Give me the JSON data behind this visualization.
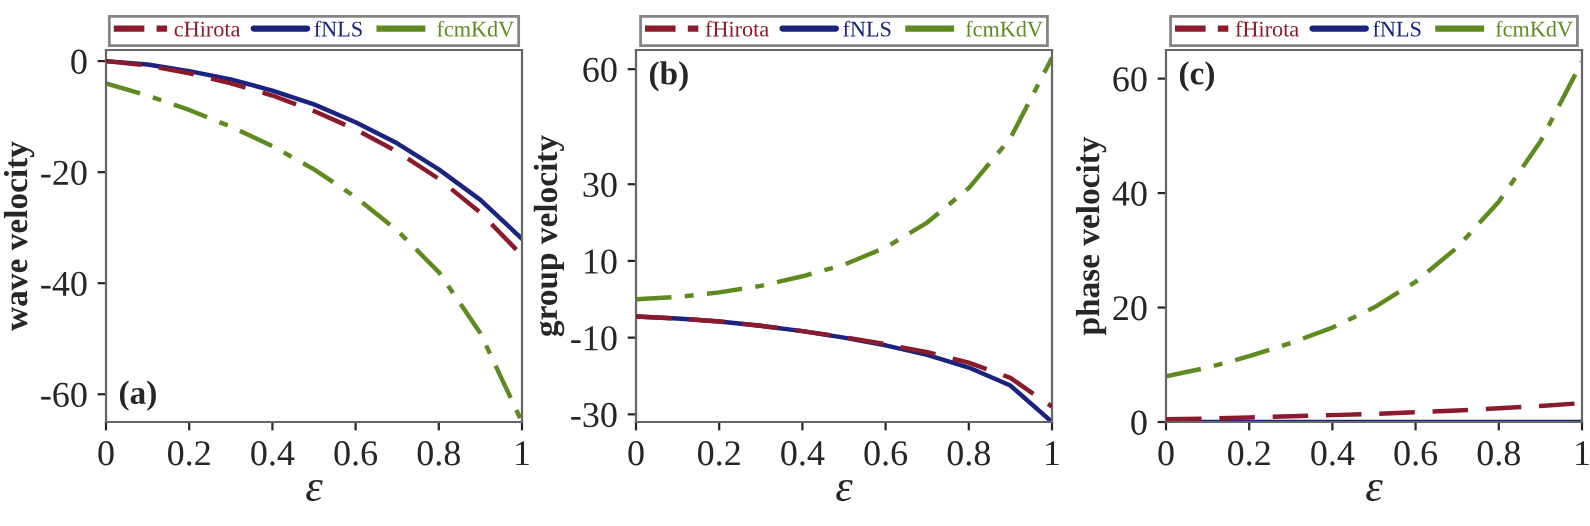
{
  "chart_data": [
    {
      "type": "line",
      "xlabel": "ε",
      "ylabel": "wave velocity",
      "annotations": [
        "(a)"
      ],
      "x": [
        0,
        0.1,
        0.2,
        0.3,
        0.4,
        0.5,
        0.6,
        0.7,
        0.8,
        0.9,
        1
      ],
      "xlim": [
        0,
        1
      ],
      "xticks": [
        0,
        0.2,
        0.4,
        0.6,
        0.8,
        1
      ],
      "ylim": [
        -65,
        2
      ],
      "yticks": [
        {
          "value": 0,
          "label": "0"
        },
        {
          "value": -20,
          "label": "-20"
        },
        {
          "value": -40,
          "label": "-40"
        },
        {
          "value": -60,
          "label": "-60"
        }
      ],
      "legend": "top",
      "grid": false,
      "series": [
        {
          "name": "cHirota",
          "color": "#8b1a2b",
          "line_style": "dashed",
          "values": [
            0,
            -0.8,
            -2.2,
            -4,
            -6.2,
            -9,
            -12.3,
            -16.3,
            -21.2,
            -27.3,
            -35
          ]
        },
        {
          "name": "fNLS",
          "color": "#1a237e",
          "line_style": "solid",
          "values": [
            0,
            -0.6,
            -1.8,
            -3.3,
            -5.3,
            -7.8,
            -11,
            -14.8,
            -19.5,
            -25,
            -32
          ]
        },
        {
          "name": "fcmKdV",
          "color": "#5f8a1f",
          "line_style": "dashdot",
          "values": [
            -4,
            -6.2,
            -8.8,
            -11.8,
            -15.3,
            -19.5,
            -24.5,
            -30.5,
            -38,
            -49,
            -65
          ]
        }
      ]
    },
    {
      "type": "line",
      "xlabel": "ε",
      "ylabel": "group velocity",
      "annotations": [
        "(b)"
      ],
      "x": [
        0,
        0.1,
        0.2,
        0.3,
        0.4,
        0.5,
        0.6,
        0.7,
        0.8,
        0.9,
        1
      ],
      "xlim": [
        0,
        1
      ],
      "xticks": [
        0,
        0.2,
        0.4,
        0.6,
        0.8,
        1
      ],
      "ylim": [
        -32,
        65
      ],
      "yticks": [
        60,
        30,
        10,
        {
          "value": -10,
          "label": "-10"
        },
        {
          "value": -30,
          "label": "-30"
        }
      ],
      "legend": "top",
      "grid": false,
      "series": [
        {
          "name": "fHirota",
          "color": "#8b1a2b",
          "line_style": "dashed",
          "values": [
            -4.5,
            -5,
            -5.8,
            -6.9,
            -8.3,
            -9.9,
            -11.7,
            -13.8,
            -16.5,
            -20.5,
            -28
          ]
        },
        {
          "name": "fNLS",
          "color": "#1a237e",
          "line_style": "solid",
          "values": [
            -4.5,
            -5,
            -5.8,
            -6.9,
            -8.3,
            -10,
            -12,
            -14.5,
            -17.8,
            -22.5,
            -32
          ]
        },
        {
          "name": "fcmKdV",
          "color": "#5f8a1f",
          "line_style": "dashdot",
          "values": [
            0,
            0.6,
            1.8,
            3.5,
            6,
            9,
            13.5,
            20,
            29,
            42,
            63
          ]
        }
      ]
    },
    {
      "type": "line",
      "xlabel": "ε",
      "ylabel": "phase velocity",
      "annotations": [
        "(c)"
      ],
      "x": [
        0,
        0.1,
        0.2,
        0.3,
        0.4,
        0.5,
        0.6,
        0.7,
        0.8,
        0.9,
        1
      ],
      "xlim": [
        0,
        1
      ],
      "xticks": [
        0,
        0.2,
        0.4,
        0.6,
        0.8,
        1
      ],
      "ylim": [
        0,
        65
      ],
      "yticks": [
        0,
        20,
        40,
        60
      ],
      "legend": "top",
      "grid": false,
      "series": [
        {
          "name": "fHirota",
          "color": "#8b1a2b",
          "line_style": "dashed",
          "values": [
            0.5,
            0.6,
            0.8,
            1,
            1.2,
            1.4,
            1.7,
            2,
            2.4,
            2.8,
            3.3
          ]
        },
        {
          "name": "fNLS",
          "color": "#1a237e",
          "line_style": "solid",
          "values": [
            0,
            0,
            0,
            0,
            0,
            0,
            0,
            0,
            0,
            0,
            0
          ]
        },
        {
          "name": "fcmKdV",
          "color": "#5f8a1f",
          "line_style": "dashdot",
          "values": [
            8,
            9.5,
            11.5,
            13.8,
            16.5,
            20,
            24.5,
            30.5,
            38.5,
            49,
            63
          ]
        }
      ]
    }
  ]
}
